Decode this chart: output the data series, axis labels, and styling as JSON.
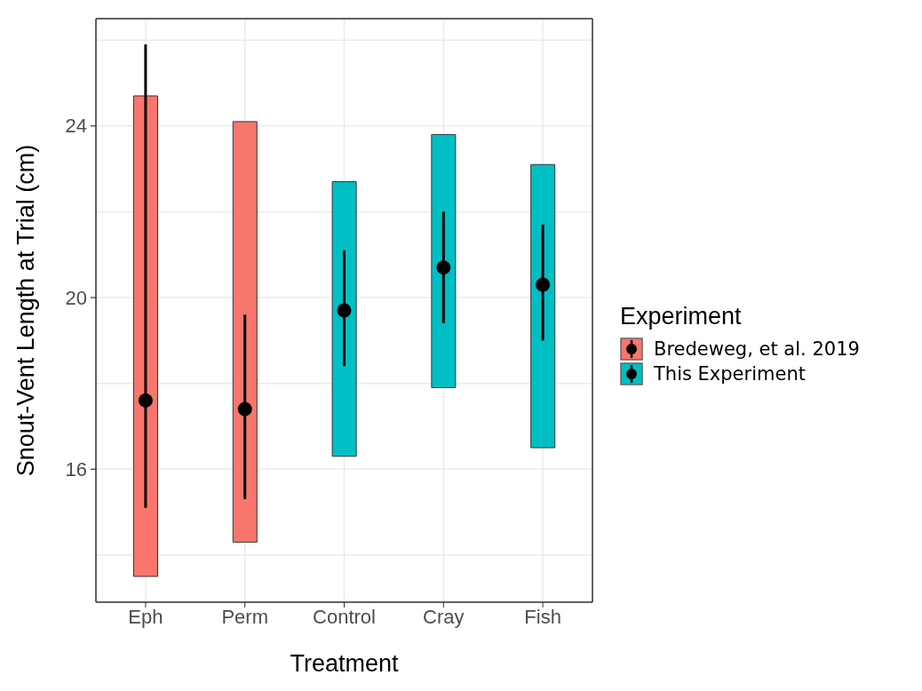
{
  "chart_data": {
    "type": "bar",
    "xlabel": "Treatment",
    "ylabel": "Snout-Vent Length at Trial (cm)",
    "legend_title": "Experiment",
    "categories": [
      "Eph",
      "Perm",
      "Control",
      "Cray",
      "Fish"
    ],
    "series": [
      {
        "name": "Bredeweg, et al. 2019",
        "color": "#f8766d",
        "base": [
          13.5,
          14.3,
          null,
          null,
          null
        ],
        "values": [
          11.2,
          9.8,
          null,
          null,
          null
        ]
      },
      {
        "name": "This Experiment",
        "color": "#00bfc4",
        "base": [
          null,
          null,
          16.3,
          17.9,
          16.5
        ],
        "values": [
          null,
          null,
          6.4,
          5.9,
          6.6
        ]
      },
      {
        "type": "scatter",
        "color": "#000000",
        "values": [
          17.6,
          17.4,
          19.7,
          20.7,
          20.3
        ],
        "errors": [
          [
            15.1,
            25.9
          ],
          [
            15.3,
            19.6
          ],
          [
            18.4,
            21.1
          ],
          [
            19.4,
            22.0
          ],
          [
            19.0,
            21.7
          ]
        ]
      }
    ],
    "ylim": [
      12.9,
      26.5
    ],
    "yticks": [
      {
        "value": 14,
        "label": null
      },
      16,
      {
        "value": 18,
        "label": null
      },
      20,
      {
        "value": 22,
        "label": null
      },
      24,
      {
        "value": 26,
        "label": null
      }
    ],
    "grid": true,
    "legend": "right",
    "marker": "circle"
  }
}
